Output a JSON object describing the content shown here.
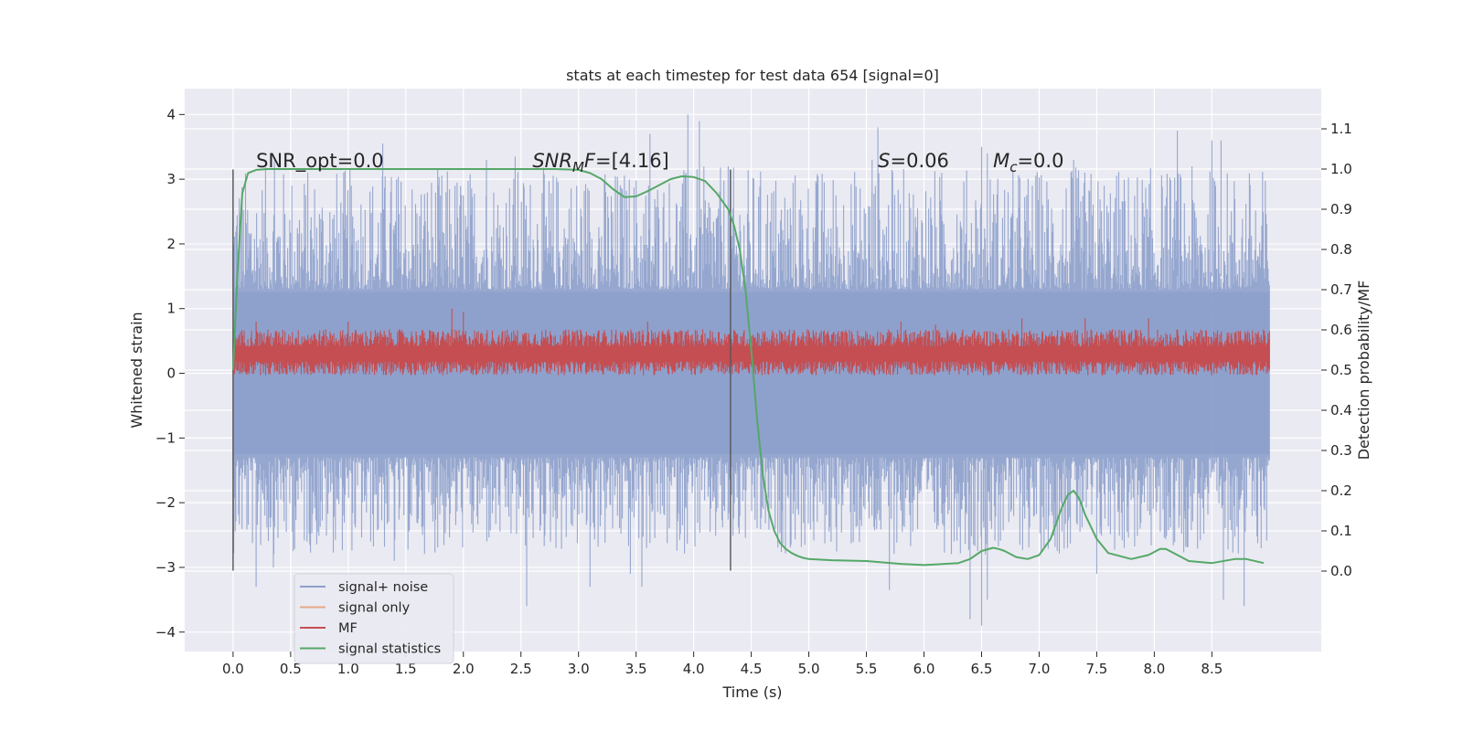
{
  "chart_data": {
    "type": "line",
    "title": "stats at each timestep for test data 654 [signal=0]",
    "xlabel": "Time (s)",
    "ylabel": "Whitened strain",
    "ylabel_right": "Detection probability/MF",
    "xlim": [
      -0.42,
      9.45
    ],
    "ylim": [
      -4.3,
      4.4
    ],
    "ylim_right": [
      -0.2,
      1.2
    ],
    "grid": true,
    "x_ticks": [
      0.0,
      0.5,
      1.0,
      1.5,
      2.0,
      2.5,
      3.0,
      3.5,
      4.0,
      4.5,
      5.0,
      5.5,
      6.0,
      6.5,
      7.0,
      7.5,
      8.0,
      8.5
    ],
    "x_tick_labels": [
      "0.0",
      "0.5",
      "1.0",
      "1.5",
      "2.0",
      "2.5",
      "3.0",
      "3.5",
      "4.0",
      "4.5",
      "5.0",
      "5.5",
      "6.0",
      "6.5",
      "7.0",
      "7.5",
      "8.0",
      "8.5"
    ],
    "y_ticks": [
      4,
      3,
      2,
      1,
      0,
      -1,
      -2,
      -3,
      -4
    ],
    "y_tick_labels": [
      "4",
      "3",
      "2",
      "1",
      "0",
      "−1",
      "−2",
      "−3",
      "−4"
    ],
    "y_right_ticks": [
      1.1,
      1.0,
      0.9,
      0.8,
      0.7,
      0.6,
      0.5,
      0.4,
      0.3,
      0.2,
      0.1,
      0.0
    ],
    "y_right_tick_labels": [
      "1.1",
      "1.0",
      "0.9",
      "0.8",
      "0.7",
      "0.6",
      "0.5",
      "0.4",
      "0.3",
      "0.2",
      "0.1",
      "0.0"
    ],
    "annotations": [
      {
        "name": "snr-opt",
        "x": 0.2,
        "y_right": 1.0,
        "text": "SNR_opt=0.0"
      },
      {
        "name": "snr-mf",
        "x": 2.6,
        "y_right": 1.0,
        "italic": "SNR",
        "sub": "M",
        "italic2": "F",
        "rest": "=[4.16]"
      },
      {
        "name": "s-value",
        "x": 5.6,
        "y_right": 1.0,
        "italic": "S",
        "rest": "=0.06"
      },
      {
        "name": "mc-value",
        "x": 6.6,
        "y_right": 1.0,
        "italic": "M",
        "sub": "c",
        "rest": "=0.0"
      }
    ],
    "vertical_lines": [
      {
        "x": 0.0,
        "y_from": -3.05,
        "y_to": 3.15
      },
      {
        "x": 4.32,
        "y_from": -3.05,
        "y_to": 3.15
      }
    ],
    "noise_envelope": {
      "x_start": 0.0,
      "x_end": 9.0,
      "lower": -2.0,
      "upper": 2.0,
      "peaks_high": [
        {
          "x": 0.0,
          "y": 3.15
        },
        {
          "x": 0.36,
          "y": 3.3
        },
        {
          "x": 1.3,
          "y": 3.55
        },
        {
          "x": 1.42,
          "y": 3.0
        },
        {
          "x": 2.2,
          "y": 3.3
        },
        {
          "x": 2.45,
          "y": 3.35
        },
        {
          "x": 3.62,
          "y": 3.7
        },
        {
          "x": 3.95,
          "y": 4.0
        },
        {
          "x": 4.05,
          "y": 3.9
        },
        {
          "x": 4.3,
          "y": 3.2
        },
        {
          "x": 5.6,
          "y": 3.8
        },
        {
          "x": 5.55,
          "y": 3.3
        },
        {
          "x": 6.5,
          "y": 3.5
        },
        {
          "x": 6.55,
          "y": 3.4
        },
        {
          "x": 7.3,
          "y": 3.3
        },
        {
          "x": 8.2,
          "y": 3.75
        },
        {
          "x": 8.5,
          "y": 3.6
        },
        {
          "x": 8.58,
          "y": 3.6
        }
      ],
      "peaks_low": [
        {
          "x": 0.2,
          "y": -3.3
        },
        {
          "x": 0.35,
          "y": -3.0
        },
        {
          "x": 1.4,
          "y": -2.9
        },
        {
          "x": 2.55,
          "y": -3.6
        },
        {
          "x": 3.1,
          "y": -3.3
        },
        {
          "x": 3.45,
          "y": -3.1
        },
        {
          "x": 3.55,
          "y": -3.3
        },
        {
          "x": 5.7,
          "y": -3.35
        },
        {
          "x": 6.4,
          "y": -3.8
        },
        {
          "x": 6.5,
          "y": -3.9
        },
        {
          "x": 6.55,
          "y": -3.5
        },
        {
          "x": 7.5,
          "y": -3.1
        },
        {
          "x": 8.6,
          "y": -3.5
        },
        {
          "x": 8.78,
          "y": -3.6
        }
      ]
    },
    "mf_band": {
      "x_start": 0.0,
      "x_end": 9.0,
      "center": 0.3,
      "half_width": 0.28,
      "peaks": [
        {
          "x": 0.2,
          "y": 0.8
        },
        {
          "x": 1.0,
          "y": 0.8
        },
        {
          "x": 1.9,
          "y": 1.0
        },
        {
          "x": 2.0,
          "y": 0.95
        },
        {
          "x": 3.6,
          "y": 0.8
        },
        {
          "x": 5.8,
          "y": 0.8
        },
        {
          "x": 6.1,
          "y": 0.75
        },
        {
          "x": 6.85,
          "y": 0.85
        },
        {
          "x": 7.4,
          "y": 0.85
        },
        {
          "x": 7.95,
          "y": 0.85
        }
      ]
    },
    "series": [
      {
        "name": "signal statistics",
        "axis": "right",
        "color": "#55a868",
        "x": [
          0.0,
          0.04,
          0.08,
          0.13,
          0.2,
          0.3,
          0.5,
          1.0,
          2.0,
          2.8,
          3.0,
          3.1,
          3.2,
          3.3,
          3.4,
          3.5,
          3.6,
          3.7,
          3.8,
          3.9,
          4.0,
          4.1,
          4.2,
          4.3,
          4.35,
          4.4,
          4.45,
          4.5,
          4.55,
          4.6,
          4.65,
          4.7,
          4.75,
          4.8,
          4.85,
          4.9,
          4.95,
          5.0,
          5.2,
          5.5,
          5.8,
          6.0,
          6.3,
          6.4,
          6.5,
          6.6,
          6.65,
          6.7,
          6.8,
          6.9,
          7.0,
          7.1,
          7.2,
          7.25,
          7.3,
          7.35,
          7.4,
          7.5,
          7.6,
          7.8,
          7.95,
          8.05,
          8.1,
          8.2,
          8.3,
          8.5,
          8.7,
          8.8,
          8.95
        ],
        "y": [
          0.5,
          0.75,
          0.94,
          0.99,
          0.998,
          1.0,
          1.0,
          1.0,
          1.0,
          1.0,
          0.998,
          0.99,
          0.975,
          0.95,
          0.93,
          0.932,
          0.945,
          0.96,
          0.975,
          0.982,
          0.98,
          0.97,
          0.94,
          0.9,
          0.86,
          0.8,
          0.7,
          0.55,
          0.38,
          0.24,
          0.15,
          0.1,
          0.07,
          0.055,
          0.045,
          0.038,
          0.033,
          0.03,
          0.027,
          0.025,
          0.018,
          0.015,
          0.02,
          0.03,
          0.05,
          0.058,
          0.055,
          0.05,
          0.035,
          0.03,
          0.04,
          0.08,
          0.16,
          0.19,
          0.2,
          0.18,
          0.14,
          0.08,
          0.045,
          0.03,
          0.04,
          0.055,
          0.055,
          0.04,
          0.025,
          0.02,
          0.03,
          0.03,
          0.02
        ]
      }
    ],
    "legend": {
      "placement": "lower-left",
      "entries": [
        {
          "label": "signal+ noise",
          "color": "#8da0cb"
        },
        {
          "label": "signal only",
          "color": "#e8a88a"
        },
        {
          "label": "MF",
          "color": "#c44e52"
        },
        {
          "label": "signal statistics",
          "color": "#55a868"
        }
      ]
    }
  }
}
